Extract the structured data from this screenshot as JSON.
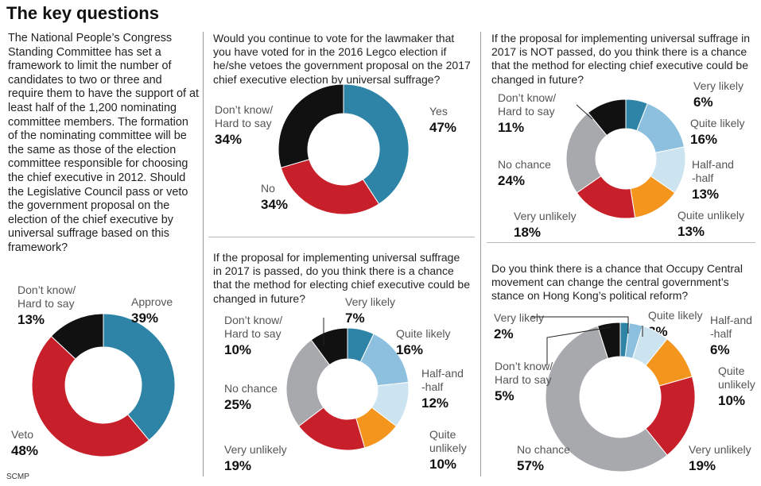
{
  "title": "The key questions",
  "intro": "The National People’s Congress Standing Committee has set a framework to limit the number of candidates to two or three and require them to have the support of at least half of the 1,200 nominating committee members. The formation of the nominating committee will be the same as those of the election committee responsible for choosing the chief executive in 2012. Should the Legislative Council pass or veto the government proposal on the election of the chief executive by universal suffrage based on this framework?",
  "questions": {
    "q2": "Would you continue to vote for the lawmaker that you have voted for in the 2016 Legco election if he/she vetoes the government proposal on the 2017 chief executive election by universal suffrage?",
    "q3": "If the proposal for implementing universal suffrage in 2017 is passed, do you think there is a chance that the method for electing chief executive could be changed in future?",
    "q4": "If the proposal for implementing universal suffrage in 2017 is NOT passed, do you think there is a chance that the method for electing chief executive could be changed in future?",
    "q5": "Do you think there is a chance that Occupy Central movement can change the central government’s stance on Hong Kong’s political reform?"
  },
  "credit": "SCMP",
  "colors": {
    "teal": "#2e84a6",
    "light_blue": "#8cc0de",
    "pale_blue": "#cce3f0",
    "orange": "#f4951e",
    "red": "#c8202a",
    "grey": "#a7a9ac",
    "black": "#111111"
  },
  "chart_data": [
    {
      "type": "pie",
      "donut": true,
      "slices": [
        {
          "label": "Approve",
          "value": 39,
          "display": "39%",
          "color": "#2e84a6"
        },
        {
          "label": "Veto",
          "value": 48,
          "display": "48%",
          "color": "#c8202a"
        },
        {
          "label": "Don’t know/ Hard to say",
          "value": 13,
          "display": "13%",
          "color": "#111111"
        }
      ]
    },
    {
      "type": "pie",
      "donut": true,
      "slices": [
        {
          "label": "Yes",
          "value": 47,
          "display": "47%",
          "color": "#2e84a6"
        },
        {
          "label": "No",
          "value": 34,
          "display": "34%",
          "color": "#c8202a"
        },
        {
          "label": "Don’t know/ Hard to say",
          "value": 34,
          "display": "34%",
          "color": "#111111"
        }
      ]
    },
    {
      "type": "pie",
      "donut": true,
      "slices": [
        {
          "label": "Very likely",
          "value": 7,
          "display": "7%",
          "color": "#2e84a6"
        },
        {
          "label": "Quite likely",
          "value": 16,
          "display": "16%",
          "color": "#8cc0de"
        },
        {
          "label": "Half-and -half",
          "value": 12,
          "display": "12%",
          "color": "#cce3f0"
        },
        {
          "label": "Quite unlikely",
          "value": 10,
          "display": "10%",
          "color": "#f4951e"
        },
        {
          "label": "Very unlikely",
          "value": 19,
          "display": "19%",
          "color": "#c8202a"
        },
        {
          "label": "No chance",
          "value": 25,
          "display": "25%",
          "color": "#a7a9ac"
        },
        {
          "label": "Don’t know/ Hard to say",
          "value": 10,
          "display": "10%",
          "color": "#111111"
        }
      ]
    },
    {
      "type": "pie",
      "donut": true,
      "slices": [
        {
          "label": "Very likely",
          "value": 6,
          "display": "6%",
          "color": "#2e84a6"
        },
        {
          "label": "Quite likely",
          "value": 16,
          "display": "16%",
          "color": "#8cc0de"
        },
        {
          "label": "Half-and -half",
          "value": 13,
          "display": "13%",
          "color": "#cce3f0"
        },
        {
          "label": "Quite unlikely",
          "value": 13,
          "display": "13%",
          "color": "#f4951e"
        },
        {
          "label": "Very unlikely",
          "value": 18,
          "display": "18%",
          "color": "#c8202a"
        },
        {
          "label": "No chance",
          "value": 24,
          "display": "24%",
          "color": "#a7a9ac"
        },
        {
          "label": "Don’t know/ Hard to say",
          "value": 11,
          "display": "11%",
          "color": "#111111"
        }
      ]
    },
    {
      "type": "pie",
      "donut": true,
      "slices": [
        {
          "label": "Very likely",
          "value": 2,
          "display": "2%",
          "color": "#2e84a6"
        },
        {
          "label": "Quite likely",
          "value": 3,
          "display": "3%",
          "color": "#8cc0de"
        },
        {
          "label": "Half-and -half",
          "value": 6,
          "display": "6%",
          "color": "#cce3f0"
        },
        {
          "label": "Quite unlikely",
          "value": 10,
          "display": "10%",
          "color": "#f4951e"
        },
        {
          "label": "Very unlikely",
          "value": 19,
          "display": "19%",
          "color": "#c8202a"
        },
        {
          "label": "No chance",
          "value": 57,
          "display": "57%",
          "color": "#a7a9ac"
        },
        {
          "label": "Don’t know/ Hard to say",
          "value": 5,
          "display": "5%",
          "color": "#111111"
        }
      ]
    }
  ]
}
